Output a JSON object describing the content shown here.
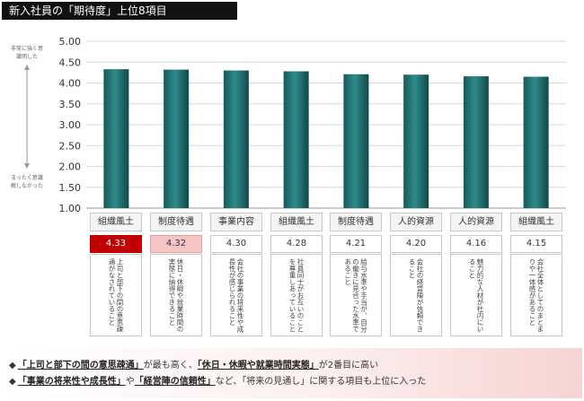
{
  "title": "新入社員の「期待度」上位8項目",
  "y_side_labels": {
    "top": "非常に強く意識明した",
    "bottom": "まったく意識解しなかった"
  },
  "chart_data": {
    "type": "bar",
    "title": "新入社員の「期待度」上位8項目",
    "ylim": [
      1.0,
      5.0
    ],
    "yticks": [
      "1.00",
      "1.50",
      "2.00",
      "2.50",
      "3.00",
      "3.50",
      "4.00",
      "4.50",
      "5.00"
    ],
    "categories": [
      "組織風土",
      "制度待遇",
      "事業内容",
      "組織風土",
      "制度待遇",
      "人的資源",
      "人的資源",
      "組織風土"
    ],
    "values": [
      4.33,
      4.32,
      4.3,
      4.28,
      4.21,
      4.2,
      4.16,
      4.15
    ],
    "value_labels": [
      "4.33",
      "4.32",
      "4.30",
      "4.28",
      "4.21",
      "4.20",
      "4.16",
      "4.15"
    ],
    "items": [
      "上司と部下の間の意思疎通がなされていること",
      "休日・休暇や就業時間の実態に納得できること",
      "会社の事業の将来性や成長性が感じられること",
      "社員同士がお互いのことを尊重しあっていること",
      "給与水準や手当が、自分の働きに見合った水準であること",
      "会社の経営陣が信頼できること",
      "魅力的な人材が社内にいること",
      "会社全体としてのまとまりや一体感があること"
    ],
    "bar_color": "#1f6b6b",
    "grid": true
  },
  "summary": {
    "line1": {
      "pre": "◆",
      "hl1": "「上司と部下の間の意思疎通」",
      "mid": "が最も高く、",
      "hl2": "「休日・休暇や就業時間実態」",
      "post": "が2番目に高い"
    },
    "line2": {
      "pre": "◆",
      "hl1": "「事業の将来性や成長性」",
      "mid": "や",
      "hl2": "「経営陣の信頼性」",
      "post": "など、「将来の見通し」に関する項目も上位に入った"
    }
  }
}
